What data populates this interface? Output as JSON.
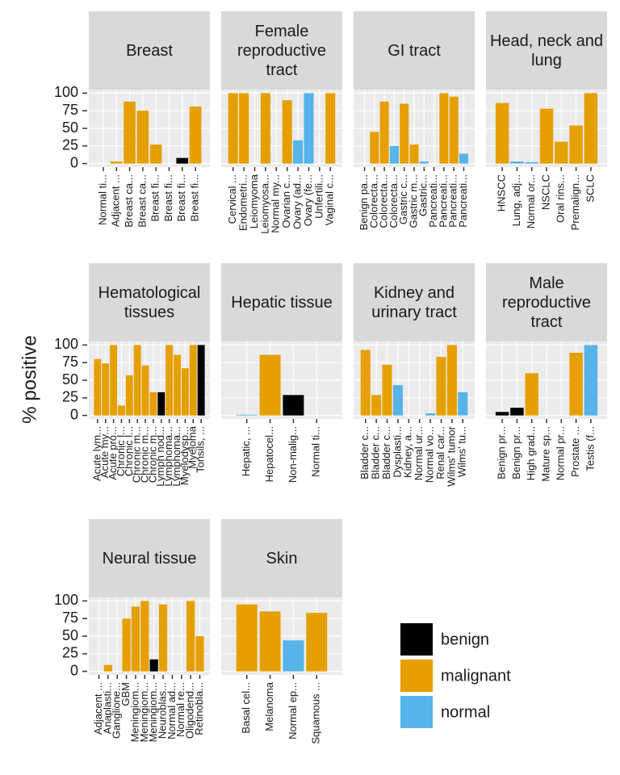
{
  "chart_data": {
    "type": "bar",
    "y_label": "% positive",
    "ylim": [
      -5,
      105
    ],
    "yticks": [
      0,
      25,
      50,
      75,
      100
    ],
    "grid": true,
    "legend": "right-bottom",
    "series": [
      {
        "name": "benign",
        "color": "#000000"
      },
      {
        "name": "malignant",
        "color": "#E69F00"
      },
      {
        "name": "normal",
        "color": "#56B4E9"
      }
    ],
    "facets": [
      {
        "title": "Breast",
        "categories": [
          "Normal ti...",
          "Adjacent ...",
          "Breast ca...",
          "Breast ca...",
          "Breast fi...",
          "Breast fi...",
          "Breast fi...",
          "Breast fi..."
        ],
        "values": [
          0,
          3,
          88,
          75,
          27,
          0,
          8,
          81
        ],
        "groups": [
          "normal",
          "malignant",
          "malignant",
          "malignant",
          "malignant",
          "benign",
          "benign",
          "malignant"
        ]
      },
      {
        "title": "Female reproductive tract",
        "categories": [
          "Cervical ...",
          "Endometri...",
          "Leiomyoma",
          "Leiomyosa...",
          "Normal my...",
          "Ovarian c...",
          "Ovary (ad...",
          "Ovary (fe...",
          "Unfertili...",
          "Vaginal c..."
        ],
        "values": [
          100,
          100,
          0,
          100,
          0,
          90,
          33,
          100,
          0,
          100
        ],
        "groups": [
          "malignant",
          "malignant",
          "benign",
          "malignant",
          "normal",
          "malignant",
          "normal",
          "normal",
          "normal",
          "malignant"
        ]
      },
      {
        "title": "GI tract",
        "categories": [
          "Benign pa...",
          "Colorecta...",
          "Colorecta...",
          "Colorecta...",
          "Gastric c...",
          "Gastric m...",
          "Gastric...",
          "Pancreati...",
          "Pancreati...",
          "Pancreati...",
          "Pancreati..."
        ],
        "values": [
          0,
          45,
          88,
          25,
          85,
          27,
          3,
          0,
          100,
          95,
          14
        ],
        "groups": [
          "benign",
          "malignant",
          "malignant",
          "normal",
          "malignant",
          "malignant",
          "normal",
          "malignant",
          "malignant",
          "malignant",
          "normal"
        ]
      },
      {
        "title": "Head, neck and lung",
        "categories": [
          "HNSCC",
          "Lung, adj...",
          "Normal or...",
          "NSCLC",
          "Oral rins...",
          "Premalign...",
          "SCLC"
        ],
        "values": [
          86,
          3,
          2,
          78,
          31,
          54,
          100
        ],
        "groups": [
          "malignant",
          "normal",
          "normal",
          "malignant",
          "malignant",
          "malignant",
          "malignant"
        ]
      },
      {
        "title": "Hematological tissues",
        "categories": [
          "Acute lym...",
          "Acute my...",
          "Acute pro...",
          "Chronic l...",
          "Chronic l...",
          "Chronic m...",
          "Chronic m...",
          "Chronic m...",
          "Lymph nod...",
          "Lymphoma...",
          "Lymphoma...",
          "Myelodysp...",
          "Myeloma",
          "Tonsils, ..."
        ],
        "values": [
          80,
          74,
          100,
          14,
          57,
          100,
          71,
          33,
          33,
          100,
          86,
          67,
          100,
          100
        ],
        "groups": [
          "malignant",
          "malignant",
          "malignant",
          "malignant",
          "malignant",
          "malignant",
          "malignant",
          "malignant",
          "benign",
          "malignant",
          "malignant",
          "malignant",
          "malignant",
          "benign"
        ]
      },
      {
        "title": "Hepatic tissue",
        "categories": [
          "Hepatic, ...",
          "Hepatocel...",
          "Non-malig...",
          "Normal ti..."
        ],
        "values": [
          1,
          86,
          29,
          0
        ],
        "groups": [
          "normal",
          "malignant",
          "benign",
          "normal"
        ]
      },
      {
        "title": "Kidney and urinary tract",
        "categories": [
          "Bladder c...",
          "Bladder c...",
          "Bladder c...",
          "Dysplasti...",
          "Kidney, a...",
          "Normal ur...",
          "Normal vo...",
          "Renal car...",
          "Wilms' tumor",
          "Wilms' tu..."
        ],
        "values": [
          93,
          29,
          72,
          43,
          0,
          0,
          3,
          83,
          100,
          33
        ],
        "groups": [
          "malignant",
          "malignant",
          "malignant",
          "normal",
          "normal",
          "normal",
          "normal",
          "malignant",
          "malignant",
          "normal"
        ]
      },
      {
        "title": "Male reproductive tract",
        "categories": [
          "Benign pr...",
          "Benign pr...",
          "High grad...",
          "Mature sp...",
          "Normal pr...",
          "Prostate ...",
          "Testis (f..."
        ],
        "values": [
          5,
          11,
          60,
          0,
          0,
          89,
          100
        ],
        "groups": [
          "benign",
          "benign",
          "malignant",
          "normal",
          "normal",
          "malignant",
          "normal"
        ]
      },
      {
        "title": "Neural tissue",
        "categories": [
          "Adjacent ...",
          "Anaplasti...",
          "Ganglione...",
          "GBM",
          "Meningiom...",
          "Meningiom...",
          "Meningiom...",
          "Neuroblas...",
          "Normal ad...",
          "Normal re...",
          "Oligodend...",
          "Retinobla..."
        ],
        "values": [
          0,
          9,
          0,
          75,
          92,
          100,
          17,
          95,
          0,
          0,
          100,
          50
        ],
        "groups": [
          "normal",
          "malignant",
          "benign",
          "malignant",
          "malignant",
          "malignant",
          "benign",
          "malignant",
          "normal",
          "normal",
          "malignant",
          "malignant"
        ]
      },
      {
        "title": "Skin",
        "categories": [
          "Basal cel...",
          "Melanoma",
          "Normal ep...",
          "Squamous ..."
        ],
        "values": [
          95,
          85,
          44,
          83
        ],
        "groups": [
          "malignant",
          "malignant",
          "normal",
          "malignant"
        ]
      }
    ]
  }
}
